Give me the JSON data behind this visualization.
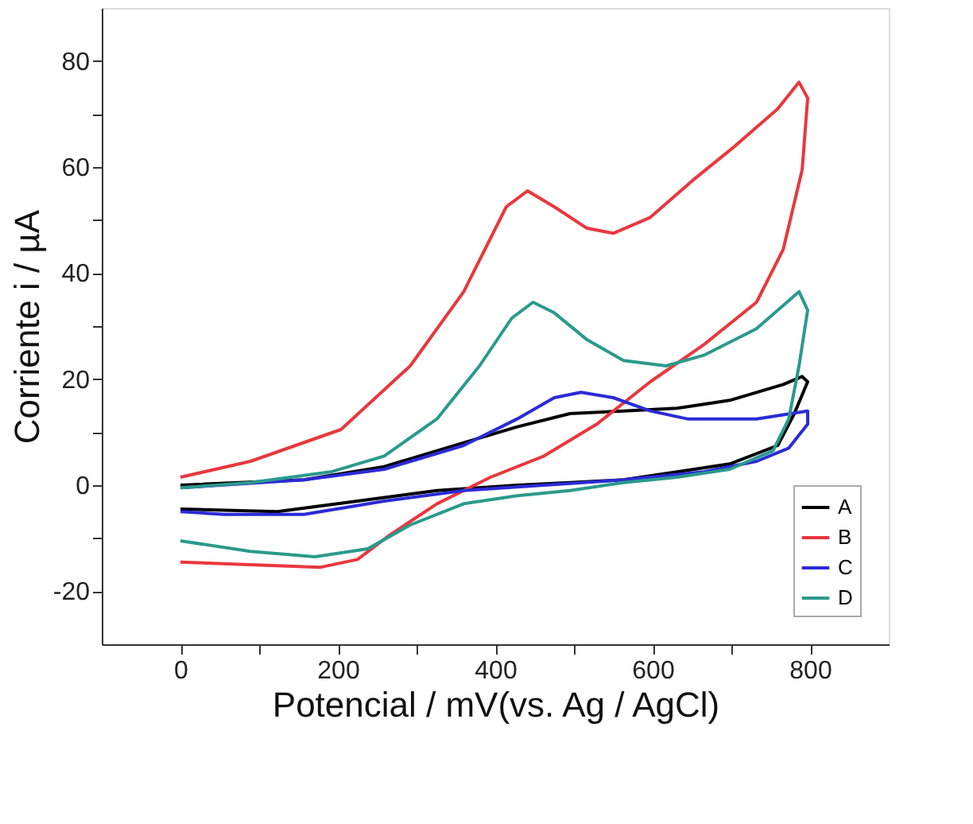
{
  "chart_data": {
    "type": "line",
    "xlabel": "Potencial / mV(vs. Ag / AgCl)",
    "ylabel": "Corriente i / µA",
    "xlim": [
      -100,
      900
    ],
    "ylim": [
      -30,
      90
    ],
    "xticks": [
      0,
      {
        "value": 100,
        "label": null
      },
      200,
      {
        "value": 300,
        "label": null
      },
      400,
      {
        "value": 500,
        "label": null
      },
      600,
      {
        "value": 700,
        "label": null
      },
      800
    ],
    "yticks": [
      -20,
      {
        "value": -10,
        "label": null
      },
      0,
      {
        "value": 10,
        "label": null
      },
      20,
      {
        "value": 30,
        "label": null
      },
      40,
      {
        "value": 50,
        "label": null
      },
      60,
      {
        "value": 70,
        "label": null
      },
      80
    ],
    "grid": false,
    "legend": "bottom right",
    "marker": "none",
    "line_style": "solid",
    "series": [
      {
        "name": "A",
        "color": "#000000",
        "x": [
          0,
          157,
          259,
          360,
          428,
          495,
          563,
          631,
          698,
          766,
          790,
          797,
          780,
          759,
          698,
          631,
          563,
          495,
          428,
          326,
          225,
          123,
          0
        ],
        "values": [
          0,
          1,
          3.5,
          8,
          11,
          13.5,
          14,
          14.5,
          16,
          19,
          20.5,
          19.5,
          13.5,
          7.5,
          4,
          2.5,
          1,
          0.5,
          0,
          -1,
          -3,
          -5,
          -4.5
        ]
      },
      {
        "name": "B",
        "color": "#e8383d",
        "x": [
          0,
          89,
          204,
          292,
          360,
          414,
          441,
          475,
          516,
          550,
          597,
          651,
          705,
          759,
          786,
          797,
          790,
          766,
          732,
          665,
          597,
          529,
          462,
          394,
          326,
          265,
          225,
          177,
          89,
          0
        ],
        "values": [
          1.5,
          4.5,
          10.5,
          22.5,
          36.5,
          52.5,
          55.5,
          52.5,
          48.5,
          47.5,
          50.5,
          57.5,
          64,
          71,
          76,
          73,
          59.5,
          44.5,
          34.5,
          26.5,
          19.5,
          11.5,
          5.5,
          1.5,
          -3.5,
          -9.5,
          -14,
          -15.5,
          -15,
          -14.5
        ]
      },
      {
        "name": "C",
        "color": "#2b2bd6",
        "x": [
          0,
          157,
          259,
          360,
          428,
          475,
          509,
          550,
          597,
          644,
          732,
          797,
          797,
          773,
          732,
          665,
          563,
          462,
          360,
          259,
          157,
          55,
          0
        ],
        "values": [
          -0.5,
          1,
          3,
          7.5,
          12.5,
          16.5,
          17.5,
          16.5,
          14,
          12.5,
          12.5,
          14,
          11.5,
          7,
          4.5,
          2.5,
          1,
          0,
          -1,
          -3,
          -5.5,
          -5.5,
          -5
        ]
      },
      {
        "name": "D",
        "color": "#2a9a8c",
        "x": [
          0,
          89,
          191,
          259,
          326,
          380,
          421,
          448,
          475,
          516,
          563,
          617,
          665,
          732,
          786,
          797,
          786,
          773,
          753,
          698,
          631,
          563,
          495,
          428,
          360,
          292,
          238,
          171,
          89,
          0
        ],
        "values": [
          -0.5,
          0.5,
          2.5,
          5.5,
          12.5,
          22.5,
          31.5,
          34.5,
          32.5,
          27.5,
          23.5,
          22.5,
          24.5,
          29.5,
          36.5,
          33,
          22.5,
          12.5,
          6.5,
          3,
          1.5,
          0.5,
          -1,
          -2,
          -3.5,
          -7.5,
          -12,
          -13.5,
          -12.5,
          -10.5
        ]
      }
    ]
  }
}
